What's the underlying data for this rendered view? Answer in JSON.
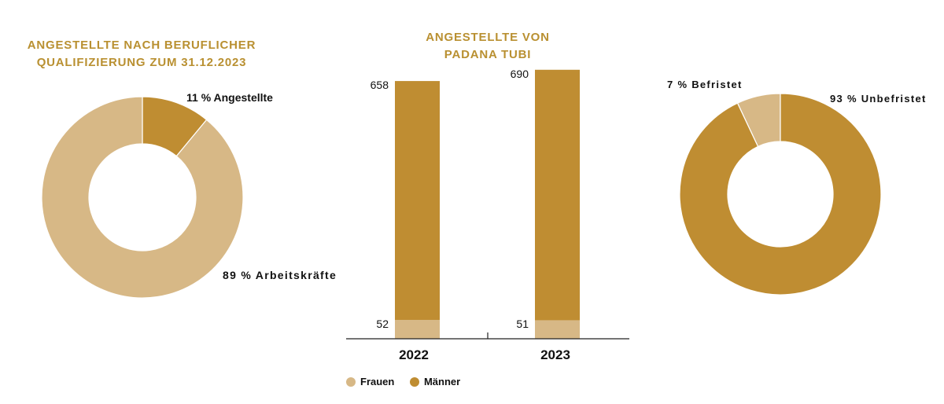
{
  "colors": {
    "light": "#d7b886",
    "dark": "#bf8d32",
    "title": "#b99031"
  },
  "chart_data": [
    {
      "type": "pie",
      "title_lines": [
        "ANGESTELLTE NACH BERUFLICHER",
        "QUALIFIZIERUNG ZUM 31.12.2023"
      ],
      "slices": [
        {
          "name": "Angestellte",
          "value": 11,
          "label": "11 % Angestellte",
          "color": "#bf8d32"
        },
        {
          "name": "Arbeitskräfte",
          "value": 89,
          "label": "89 % Arbeitskräfte",
          "color": "#d7b886"
        }
      ]
    },
    {
      "type": "bar",
      "title_lines": [
        "ANGESTELLTE VON",
        "PADANA TUBI"
      ],
      "categories": [
        "2022",
        "2023"
      ],
      "series": [
        {
          "name": "Frauen",
          "values": [
            52,
            51
          ],
          "labels": [
            "52",
            "51"
          ],
          "color": "#d7b886"
        },
        {
          "name": "Männer",
          "values": [
            658,
            690
          ],
          "labels": [
            "658",
            "690"
          ],
          "color": "#bf8d32"
        }
      ],
      "stacked": true,
      "legend": {
        "position": "bottom",
        "items": [
          "Frauen",
          "Männer"
        ]
      }
    },
    {
      "type": "pie",
      "slices": [
        {
          "name": "Befristet",
          "value": 7,
          "label": "7 % Befristet",
          "color": "#d7b886"
        },
        {
          "name": "Unbefristet",
          "value": 93,
          "label": "93 % Unbefristet",
          "color": "#bf8d32"
        }
      ]
    }
  ]
}
